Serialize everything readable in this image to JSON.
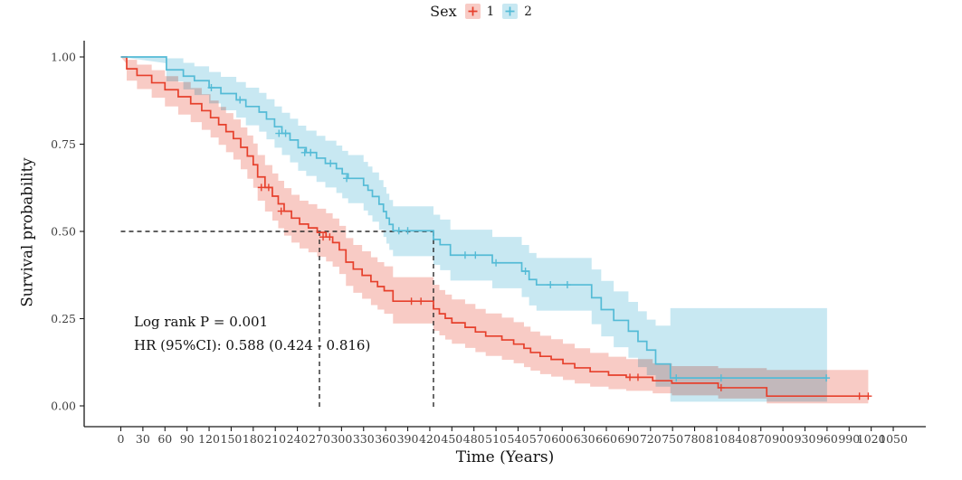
{
  "legend": {
    "title": "Sex",
    "items": [
      {
        "label": "1",
        "line_color": "#E6402C",
        "band_color": "#F8CBC5"
      },
      {
        "label": "2",
        "line_color": "#54BBD6",
        "band_color": "#C8E8F2"
      }
    ]
  },
  "annotation": {
    "line1": "Log rank P = 0.001",
    "line2": "HR (95%CI): 0.588 (0.424 - 0.816)"
  },
  "chart_data": {
    "type": "line",
    "subtype": "kaplan-meier-step",
    "xlabel": "Time (Years)",
    "ylabel": "Survival probability",
    "xlim": [
      0,
      1050
    ],
    "ylim": [
      0,
      1
    ],
    "grid": false,
    "legend_position": "top",
    "x_ticks": [
      0,
      30,
      60,
      90,
      120,
      150,
      180,
      210,
      240,
      270,
      300,
      330,
      360,
      390,
      420,
      450,
      480,
      510,
      540,
      570,
      600,
      630,
      660,
      690,
      720,
      750,
      780,
      810,
      840,
      870,
      900,
      930,
      960,
      990,
      1020,
      1050
    ],
    "y_ticks": [
      0,
      0.25,
      0.5,
      0.75,
      1
    ],
    "y_tick_labels": [
      "0.00",
      "0.25",
      "0.50",
      "0.75",
      "1.00"
    ],
    "median_survival": {
      "y": 0.5,
      "group1_median": 270,
      "group2_median": 425
    },
    "series": [
      {
        "name": "1",
        "color": "#E6402C",
        "band_color": "#F8CBC5",
        "points": [
          [
            0,
            1.0,
            0.98,
            1.0
          ],
          [
            8,
            0.966,
            0.932,
            0.992
          ],
          [
            22,
            0.947,
            0.908,
            0.978
          ],
          [
            42,
            0.926,
            0.883,
            0.962
          ],
          [
            60,
            0.906,
            0.858,
            0.945
          ],
          [
            78,
            0.886,
            0.835,
            0.928
          ],
          [
            95,
            0.866,
            0.813,
            0.911
          ],
          [
            110,
            0.846,
            0.791,
            0.893
          ],
          [
            122,
            0.826,
            0.769,
            0.875
          ],
          [
            133,
            0.806,
            0.748,
            0.857
          ],
          [
            143,
            0.786,
            0.727,
            0.839
          ],
          [
            153,
            0.766,
            0.706,
            0.821
          ],
          [
            163,
            0.741,
            0.678,
            0.798
          ],
          [
            172,
            0.716,
            0.651,
            0.775
          ],
          [
            180,
            0.691,
            0.625,
            0.752
          ],
          [
            186,
            0.656,
            0.588,
            0.719
          ],
          [
            196,
            0.626,
            0.557,
            0.69
          ],
          [
            206,
            0.601,
            0.531,
            0.666
          ],
          [
            214,
            0.579,
            0.509,
            0.645
          ],
          [
            222,
            0.558,
            0.488,
            0.624
          ],
          [
            232,
            0.538,
            0.468,
            0.605
          ],
          [
            243,
            0.521,
            0.451,
            0.588
          ],
          [
            255,
            0.51,
            0.44,
            0.578
          ],
          [
            267,
            0.497,
            0.427,
            0.565
          ],
          [
            279,
            0.484,
            0.414,
            0.552
          ],
          [
            288,
            0.468,
            0.399,
            0.537
          ],
          [
            297,
            0.447,
            0.378,
            0.516
          ],
          [
            306,
            0.412,
            0.344,
            0.481
          ],
          [
            316,
            0.392,
            0.324,
            0.461
          ],
          [
            328,
            0.374,
            0.307,
            0.443
          ],
          [
            340,
            0.356,
            0.289,
            0.426
          ],
          [
            349,
            0.342,
            0.276,
            0.412
          ],
          [
            358,
            0.33,
            0.264,
            0.4
          ],
          [
            370,
            0.3,
            0.236,
            0.369
          ],
          [
            425,
            0.278,
            0.215,
            0.347
          ],
          [
            433,
            0.264,
            0.202,
            0.332
          ],
          [
            441,
            0.251,
            0.19,
            0.319
          ],
          [
            450,
            0.238,
            0.178,
            0.305
          ],
          [
            468,
            0.225,
            0.166,
            0.292
          ],
          [
            482,
            0.212,
            0.154,
            0.278
          ],
          [
            496,
            0.2,
            0.143,
            0.265
          ],
          [
            518,
            0.189,
            0.132,
            0.253
          ],
          [
            534,
            0.177,
            0.122,
            0.24
          ],
          [
            548,
            0.165,
            0.111,
            0.227
          ],
          [
            557,
            0.153,
            0.101,
            0.213
          ],
          [
            570,
            0.142,
            0.091,
            0.201
          ],
          [
            585,
            0.133,
            0.084,
            0.191
          ],
          [
            601,
            0.121,
            0.074,
            0.178
          ],
          [
            617,
            0.109,
            0.064,
            0.165
          ],
          [
            638,
            0.098,
            0.055,
            0.152
          ],
          [
            663,
            0.088,
            0.048,
            0.141
          ],
          [
            687,
            0.082,
            0.043,
            0.134
          ],
          [
            723,
            0.072,
            0.036,
            0.122
          ],
          [
            749,
            0.065,
            0.03,
            0.114
          ],
          [
            812,
            0.052,
            0.021,
            0.108
          ],
          [
            878,
            0.028,
            0.007,
            0.103
          ],
          [
            1016,
            0.028,
            0.007,
            0.103
          ]
        ],
        "censors": [
          [
            191,
            0.626
          ],
          [
            201,
            0.626
          ],
          [
            218,
            0.558
          ],
          [
            275,
            0.484
          ],
          [
            284,
            0.484
          ],
          [
            395,
            0.3
          ],
          [
            408,
            0.3
          ],
          [
            692,
            0.082
          ],
          [
            703,
            0.082
          ],
          [
            816,
            0.052
          ],
          [
            1004,
            0.028
          ],
          [
            1016,
            0.028
          ]
        ]
      },
      {
        "name": "2",
        "color": "#54BBD6",
        "band_color": "#C8E8F2",
        "points": [
          [
            0,
            1.0,
            0.982,
            1.0
          ],
          [
            62,
            0.963,
            0.93,
            0.996
          ],
          [
            85,
            0.945,
            0.907,
            0.983
          ],
          [
            100,
            0.932,
            0.891,
            0.973
          ],
          [
            120,
            0.912,
            0.867,
            0.957
          ],
          [
            136,
            0.895,
            0.847,
            0.943
          ],
          [
            157,
            0.877,
            0.826,
            0.928
          ],
          [
            170,
            0.858,
            0.804,
            0.912
          ],
          [
            188,
            0.842,
            0.786,
            0.897
          ],
          [
            198,
            0.822,
            0.764,
            0.879
          ],
          [
            209,
            0.8,
            0.74,
            0.858
          ],
          [
            219,
            0.781,
            0.719,
            0.84
          ],
          [
            230,
            0.762,
            0.698,
            0.823
          ],
          [
            241,
            0.74,
            0.674,
            0.803
          ],
          [
            252,
            0.726,
            0.659,
            0.789
          ],
          [
            266,
            0.71,
            0.642,
            0.774
          ],
          [
            278,
            0.695,
            0.626,
            0.76
          ],
          [
            293,
            0.68,
            0.61,
            0.746
          ],
          [
            301,
            0.665,
            0.595,
            0.731
          ],
          [
            309,
            0.652,
            0.581,
            0.719
          ],
          [
            330,
            0.632,
            0.56,
            0.699
          ],
          [
            336,
            0.618,
            0.546,
            0.686
          ],
          [
            342,
            0.6,
            0.528,
            0.669
          ],
          [
            351,
            0.578,
            0.505,
            0.647
          ],
          [
            357,
            0.557,
            0.484,
            0.627
          ],
          [
            361,
            0.538,
            0.465,
            0.608
          ],
          [
            365,
            0.52,
            0.447,
            0.59
          ],
          [
            370,
            0.502,
            0.429,
            0.572
          ],
          [
            425,
            0.477,
            0.404,
            0.548
          ],
          [
            434,
            0.462,
            0.389,
            0.534
          ],
          [
            448,
            0.432,
            0.359,
            0.505
          ],
          [
            505,
            0.41,
            0.337,
            0.484
          ],
          [
            545,
            0.386,
            0.312,
            0.461
          ],
          [
            555,
            0.362,
            0.288,
            0.438
          ],
          [
            565,
            0.347,
            0.273,
            0.424
          ],
          [
            640,
            0.31,
            0.234,
            0.391
          ],
          [
            653,
            0.276,
            0.199,
            0.358
          ],
          [
            670,
            0.245,
            0.168,
            0.328
          ],
          [
            690,
            0.214,
            0.138,
            0.298
          ],
          [
            703,
            0.185,
            0.111,
            0.271
          ],
          [
            715,
            0.16,
            0.088,
            0.247
          ],
          [
            727,
            0.12,
            0.055,
            0.23
          ],
          [
            747,
            0.08,
            0.012,
            0.28
          ],
          [
            960,
            0.08,
            0.012,
            0.28
          ]
        ],
        "censors": [
          [
            123,
            0.912
          ],
          [
            162,
            0.877
          ],
          [
            215,
            0.781
          ],
          [
            224,
            0.781
          ],
          [
            250,
            0.726
          ],
          [
            258,
            0.726
          ],
          [
            285,
            0.695
          ],
          [
            307,
            0.652
          ],
          [
            378,
            0.502
          ],
          [
            390,
            0.502
          ],
          [
            468,
            0.432
          ],
          [
            482,
            0.432
          ],
          [
            510,
            0.41
          ],
          [
            550,
            0.386
          ],
          [
            584,
            0.347
          ],
          [
            607,
            0.347
          ],
          [
            755,
            0.08
          ],
          [
            816,
            0.08
          ],
          [
            959,
            0.08
          ]
        ]
      }
    ]
  }
}
